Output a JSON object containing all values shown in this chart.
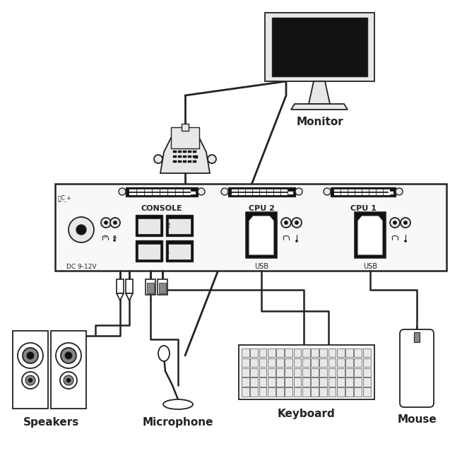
{
  "bg_color": "#ffffff",
  "line_color": "#222222",
  "fill_dark": "#111111",
  "fill_gray": "#888888",
  "fill_light": "#e8e8e8",
  "lw": 1.3,
  "labels": {
    "monitor": "Monitor",
    "console": "CONSOLE",
    "cpu2": "CPU 2",
    "cpu1": "CPU 1",
    "dc": "DC 9-12V",
    "usb": "USB",
    "speakers": "Speakers",
    "microphone": "Microphone",
    "keyboard": "Keyboard",
    "mouse": "Mouse"
  }
}
